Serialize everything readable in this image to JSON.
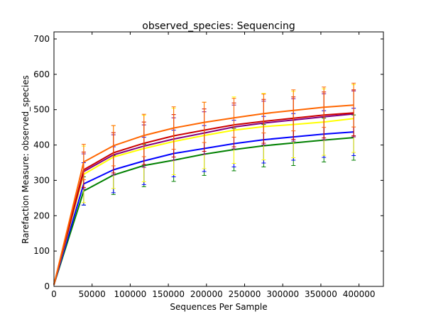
{
  "chart_data": {
    "type": "line",
    "title": "observed_species: Sequencing",
    "xlabel": "Sequences Per Sample",
    "ylabel": "Rarefaction Measure: observed_species",
    "xlim": [
      0,
      432000
    ],
    "ylim": [
      0,
      720
    ],
    "xticks": [
      0,
      50000,
      100000,
      150000,
      200000,
      250000,
      300000,
      350000,
      400000
    ],
    "yticks": [
      0,
      100,
      200,
      300,
      400,
      500,
      600,
      700
    ],
    "grid": false,
    "legend": "none",
    "x": [
      10,
      39000,
      78000,
      118000,
      157000,
      197000,
      236000,
      275000,
      314000,
      354000,
      393000
    ],
    "series": [
      {
        "color": "#ff6600",
        "values": [
          5,
          352,
          398,
          427,
          448,
          464,
          477,
          489,
          498,
          507,
          513
        ],
        "errors": [
          0,
          50,
          57,
          60,
          60,
          57,
          55,
          55,
          58,
          57,
          62
        ]
      },
      {
        "color": "#cc0000",
        "values": [
          5,
          330,
          378,
          405,
          426,
          442,
          457,
          467,
          476,
          485,
          491
        ],
        "errors": [
          0,
          50,
          57,
          60,
          60,
          60,
          62,
          62,
          60,
          65,
          65
        ]
      },
      {
        "color": "#800080",
        "values": [
          5,
          325,
          372,
          397,
          417,
          434,
          451,
          462,
          471,
          480,
          488
        ],
        "errors": [
          0,
          50,
          57,
          60,
          60,
          60,
          62,
          62,
          60,
          65,
          65
        ]
      },
      {
        "color": "#ffff00",
        "values": [
          5,
          317,
          366,
          390,
          410,
          427,
          442,
          452,
          458,
          465,
          475
        ],
        "errors": [
          0,
          80,
          89,
          94,
          94,
          94,
          94,
          94,
          94,
          94,
          96
        ]
      },
      {
        "color": "#0000ff",
        "values": [
          5,
          290,
          330,
          355,
          376,
          390,
          404,
          415,
          423,
          431,
          437
        ],
        "errors": [
          0,
          60,
          65,
          67,
          66,
          65,
          66,
          66,
          66,
          66,
          67
        ]
      },
      {
        "color": "#008000",
        "values": [
          5,
          270,
          315,
          342,
          357,
          374,
          387,
          398,
          406,
          414,
          421
        ],
        "errors": [
          0,
          40,
          55,
          60,
          60,
          60,
          60,
          60,
          64,
          62,
          64
        ]
      }
    ]
  }
}
